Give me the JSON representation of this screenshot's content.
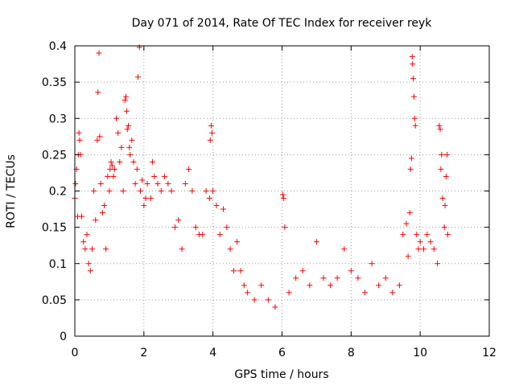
{
  "chart_data": {
    "type": "scatter",
    "title": "Day 071 of 2014, Rate Of TEC Index for receiver reyk",
    "xlabel": "GPS time / hours",
    "ylabel": "ROTI / TECUs",
    "xlim": [
      0,
      12
    ],
    "ylim": [
      0,
      0.4
    ],
    "x_ticks": [
      "0",
      "2",
      "4",
      "6",
      "8",
      "10",
      "12"
    ],
    "y_ticks": [
      "0",
      "0.05",
      "0.1",
      "0.15",
      "0.2",
      "0.25",
      "0.3",
      "0.35",
      "0.4"
    ],
    "grid": true,
    "marker": "+",
    "color": "#ff0000",
    "series": [
      {
        "name": "reyk",
        "points": [
          [
            0.0,
            0.19
          ],
          [
            0.02,
            0.21
          ],
          [
            0.05,
            0.23
          ],
          [
            0.08,
            0.165
          ],
          [
            0.1,
            0.25
          ],
          [
            0.12,
            0.28
          ],
          [
            0.14,
            0.27
          ],
          [
            0.16,
            0.25
          ],
          [
            0.2,
            0.165
          ],
          [
            0.25,
            0.13
          ],
          [
            0.3,
            0.12
          ],
          [
            0.35,
            0.14
          ],
          [
            0.4,
            0.1
          ],
          [
            0.45,
            0.09
          ],
          [
            0.5,
            0.12
          ],
          [
            0.55,
            0.2
          ],
          [
            0.6,
            0.16
          ],
          [
            0.65,
            0.27
          ],
          [
            0.67,
            0.336
          ],
          [
            0.7,
            0.39
          ],
          [
            0.72,
            0.275
          ],
          [
            0.75,
            0.21
          ],
          [
            0.8,
            0.17
          ],
          [
            0.85,
            0.18
          ],
          [
            0.9,
            0.12
          ],
          [
            0.95,
            0.22
          ],
          [
            1.0,
            0.2
          ],
          [
            1.02,
            0.23
          ],
          [
            1.05,
            0.24
          ],
          [
            1.08,
            0.235
          ],
          [
            1.12,
            0.22
          ],
          [
            1.15,
            0.23
          ],
          [
            1.2,
            0.3
          ],
          [
            1.25,
            0.28
          ],
          [
            1.3,
            0.24
          ],
          [
            1.35,
            0.26
          ],
          [
            1.4,
            0.2
          ],
          [
            1.45,
            0.325
          ],
          [
            1.48,
            0.33
          ],
          [
            1.5,
            0.31
          ],
          [
            1.52,
            0.285
          ],
          [
            1.55,
            0.29
          ],
          [
            1.58,
            0.26
          ],
          [
            1.6,
            0.25
          ],
          [
            1.65,
            0.27
          ],
          [
            1.7,
            0.24
          ],
          [
            1.75,
            0.21
          ],
          [
            1.8,
            0.23
          ],
          [
            1.83,
            0.357
          ],
          [
            1.87,
            0.398
          ],
          [
            1.9,
            0.2
          ],
          [
            1.95,
            0.215
          ],
          [
            2.0,
            0.18
          ],
          [
            2.05,
            0.19
          ],
          [
            2.1,
            0.21
          ],
          [
            2.2,
            0.19
          ],
          [
            2.25,
            0.24
          ],
          [
            2.3,
            0.22
          ],
          [
            2.4,
            0.21
          ],
          [
            2.5,
            0.2
          ],
          [
            2.6,
            0.22
          ],
          [
            2.7,
            0.21
          ],
          [
            2.8,
            0.2
          ],
          [
            2.9,
            0.15
          ],
          [
            3.0,
            0.16
          ],
          [
            3.1,
            0.12
          ],
          [
            3.2,
            0.21
          ],
          [
            3.3,
            0.23
          ],
          [
            3.4,
            0.2
          ],
          [
            3.5,
            0.15
          ],
          [
            3.6,
            0.14
          ],
          [
            3.7,
            0.14
          ],
          [
            3.8,
            0.2
          ],
          [
            3.9,
            0.19
          ],
          [
            3.92,
            0.27
          ],
          [
            3.95,
            0.29
          ],
          [
            3.97,
            0.28
          ],
          [
            4.0,
            0.2
          ],
          [
            4.1,
            0.18
          ],
          [
            4.2,
            0.14
          ],
          [
            4.3,
            0.175
          ],
          [
            4.4,
            0.15
          ],
          [
            4.5,
            0.12
          ],
          [
            4.6,
            0.09
          ],
          [
            4.7,
            0.13
          ],
          [
            4.8,
            0.09
          ],
          [
            4.9,
            0.07
          ],
          [
            5.0,
            0.06
          ],
          [
            5.2,
            0.05
          ],
          [
            5.4,
            0.07
          ],
          [
            5.6,
            0.05
          ],
          [
            5.8,
            0.04
          ],
          [
            6.02,
            0.195
          ],
          [
            6.05,
            0.19
          ],
          [
            6.08,
            0.15
          ],
          [
            6.2,
            0.06
          ],
          [
            6.4,
            0.08
          ],
          [
            6.6,
            0.09
          ],
          [
            6.8,
            0.07
          ],
          [
            7.0,
            0.13
          ],
          [
            7.2,
            0.08
          ],
          [
            7.4,
            0.07
          ],
          [
            7.6,
            0.08
          ],
          [
            7.8,
            0.12
          ],
          [
            8.0,
            0.09
          ],
          [
            8.2,
            0.08
          ],
          [
            8.4,
            0.06
          ],
          [
            8.6,
            0.1
          ],
          [
            8.8,
            0.07
          ],
          [
            9.0,
            0.08
          ],
          [
            9.2,
            0.06
          ],
          [
            9.4,
            0.07
          ],
          [
            9.5,
            0.14
          ],
          [
            9.6,
            0.155
          ],
          [
            9.65,
            0.11
          ],
          [
            9.7,
            0.17
          ],
          [
            9.72,
            0.23
          ],
          [
            9.75,
            0.245
          ],
          [
            9.77,
            0.385
          ],
          [
            9.78,
            0.375
          ],
          [
            9.8,
            0.355
          ],
          [
            9.82,
            0.33
          ],
          [
            9.84,
            0.3
          ],
          [
            9.86,
            0.29
          ],
          [
            9.9,
            0.14
          ],
          [
            9.95,
            0.12
          ],
          [
            10.0,
            0.13
          ],
          [
            10.1,
            0.12
          ],
          [
            10.2,
            0.14
          ],
          [
            10.3,
            0.13
          ],
          [
            10.4,
            0.12
          ],
          [
            10.5,
            0.1
          ],
          [
            10.55,
            0.29
          ],
          [
            10.58,
            0.285
          ],
          [
            10.6,
            0.23
          ],
          [
            10.62,
            0.25
          ],
          [
            10.65,
            0.19
          ],
          [
            10.7,
            0.15
          ],
          [
            10.72,
            0.18
          ],
          [
            10.75,
            0.22
          ],
          [
            10.78,
            0.25
          ],
          [
            10.8,
            0.14
          ]
        ]
      }
    ]
  }
}
